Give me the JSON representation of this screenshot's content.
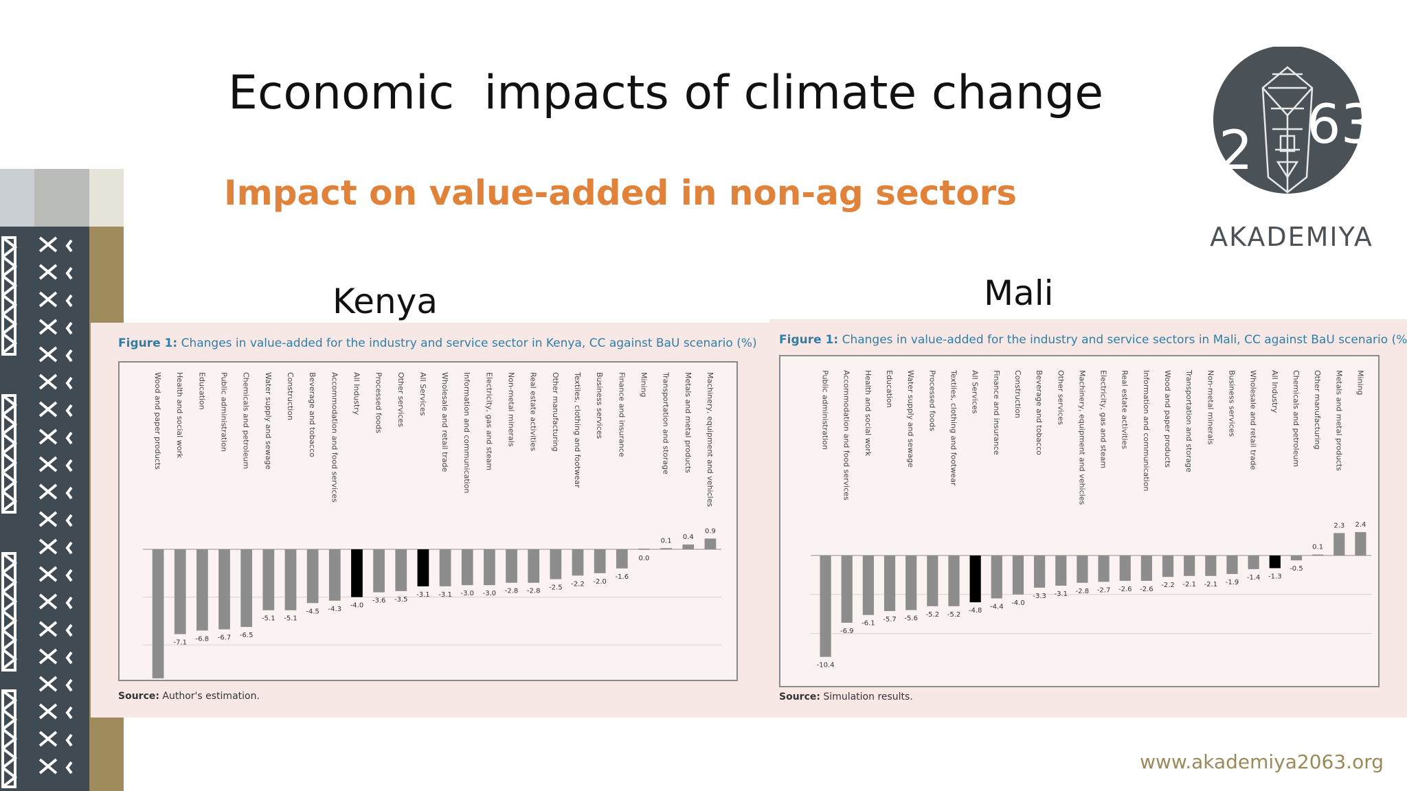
{
  "slide": {
    "title": "Economic  impacts of climate change",
    "subtitle": "Impact on value-added in non-ag sectors",
    "website": "www.akademiya2063.org",
    "logo": {
      "text": "AKADEMIYA",
      "digits_left": "2",
      "digits_right": "63"
    },
    "colors": {
      "subtitle": "#e0823a",
      "logo_circle": "#4a5258",
      "bar": "#8d8d8d",
      "highlight_bar": "#000000",
      "caption": "#2f7ea8"
    }
  },
  "kenya": {
    "country_label": "Kenya",
    "caption_label": "Figure 1:",
    "caption_text": " Changes in value-added for the industry and service sector in Kenya, CC against BaU scenario (%)",
    "source_label": "Source:",
    "source_text": " Author's estimation."
  },
  "mali": {
    "country_label": "Mali",
    "caption_label": "Figure 1:",
    "caption_text": " Changes in value-added for the industry and service sectors in Mali, CC against BaU scenario (%)",
    "source_label": "Source:",
    "source_text": " Simulation results."
  },
  "chart_data": [
    {
      "type": "bar",
      "country": "Kenya",
      "categories": [
        "Wood and paper products",
        "Health and social work",
        "Education",
        "Public administration",
        "Chemicals and petroleum",
        "Water supply and sewage",
        "Construction",
        "Beverage and tobacco",
        "Accommodation and food services",
        "All Industry",
        "Processed foods",
        "Other services",
        "All Services",
        "Wholesale and retail trade",
        "Information and communication",
        "Electricity, gas and steam",
        "Non-metal minerals",
        "Real estate activities",
        "Other manufacturing",
        "Textiles, clothing and footwear",
        "Business services",
        "Finance and insurance",
        "Mining",
        "Transportation and storage",
        "Metals and metal products",
        "Machinery, equipment and vehicles"
      ],
      "values": [
        -10.8,
        -7.1,
        -6.8,
        -6.7,
        -6.5,
        -5.1,
        -5.1,
        -4.5,
        -4.3,
        -4.0,
        -3.6,
        -3.5,
        -3.1,
        -3.1,
        -3.0,
        -3.0,
        -2.8,
        -2.8,
        -2.5,
        -2.2,
        -2.0,
        -1.6,
        0.0,
        0.1,
        0.4,
        0.9
      ],
      "value_labels": [
        "-10.8",
        "-7.1",
        "-6.8",
        "-6.7",
        "-6.5",
        "-5.1",
        "-5.1",
        "-4.5",
        "-4.3",
        "-4.0",
        "-3.6",
        "-3.5",
        "-3.1",
        "-3.1",
        "-3.0",
        "-3.0",
        "-2.8",
        "-2.8",
        "-2.5",
        "-2.2",
        "-2.0",
        "-1.6",
        "0.0",
        "0.1",
        "0.4",
        "0.9"
      ],
      "highlight": [
        "All Industry",
        "All Services"
      ],
      "ylim": [
        -11,
        1.2
      ]
    },
    {
      "type": "bar",
      "country": "Mali",
      "categories": [
        "Public administration",
        "Accommodation and food services",
        "Health and social work",
        "Education",
        "Water supply and sewage",
        "Processed foods",
        "Textiles, clothing and footwear",
        "All Services",
        "Finance and insurance",
        "Construction",
        "Beverage and tobacco",
        "Other services",
        "Machinery, equipment and vehicles",
        "Electricity, gas and steam",
        "Real estate activities",
        "Information and communication",
        "Wood and paper products",
        "Transportation and storage",
        "Non-metal minerals",
        "Business services",
        "Wholesale and retail trade",
        "All Industry",
        "Chemicals and petroleum",
        "Other manufacturing",
        "Metals and metal products",
        "Mining"
      ],
      "values": [
        -10.4,
        -6.9,
        -6.1,
        -5.7,
        -5.6,
        -5.2,
        -5.2,
        -4.8,
        -4.4,
        -4.0,
        -3.3,
        -3.1,
        -2.8,
        -2.7,
        -2.6,
        -2.6,
        -2.2,
        -2.1,
        -2.1,
        -1.9,
        -1.4,
        -1.3,
        -0.5,
        0.1,
        2.3,
        2.4
      ],
      "value_labels": [
        "-10.4",
        "-6.9",
        "-6.1",
        "-5.7",
        "-5.6",
        "-5.2",
        "-5.2",
        "-4.8",
        "-4.4",
        "-4.0",
        "-3.3",
        "-3.1",
        "-2.8",
        "-2.7",
        "-2.6",
        "-2.6",
        "-2.2",
        "-2.1",
        "-2.1",
        "-1.9",
        "-1.4",
        "-1.3",
        "-0.5",
        "0.1",
        "2.3",
        "2.4"
      ],
      "highlight": [
        "All Services",
        "All Industry"
      ],
      "ylim": [
        -11,
        3
      ]
    }
  ]
}
